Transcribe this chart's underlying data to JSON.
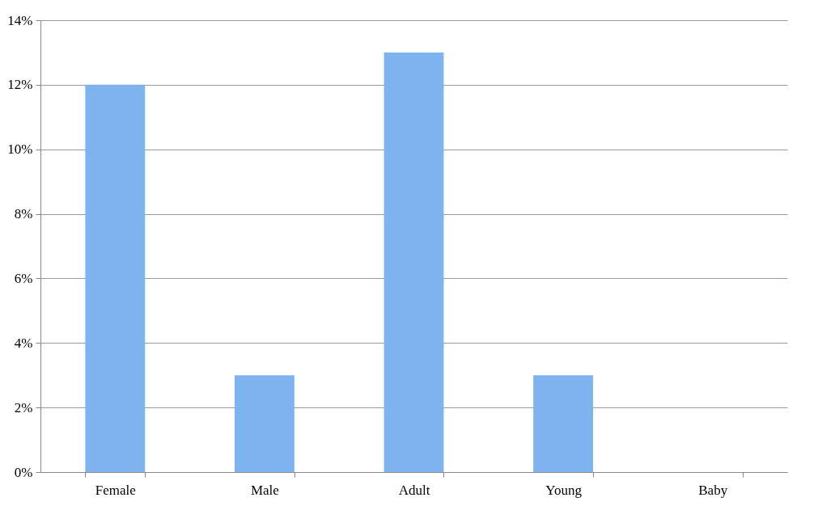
{
  "chart_data": {
    "type": "bar",
    "categories": [
      "Female",
      "Male",
      "Adult",
      "Young",
      "Baby"
    ],
    "values": [
      12,
      3,
      13,
      3,
      0
    ],
    "color": "#7db3ef",
    "ylim": [
      0,
      14
    ],
    "yticks": [
      {
        "value": 0,
        "label": "0%"
      },
      {
        "value": 2,
        "label": "2%"
      },
      {
        "value": 4,
        "label": "4%"
      },
      {
        "value": 6,
        "label": "6%"
      },
      {
        "value": 8,
        "label": "8%"
      },
      {
        "value": 10,
        "label": "10%"
      },
      {
        "value": 12,
        "label": "12%"
      },
      {
        "value": 14,
        "label": "14%"
      }
    ],
    "grid": "y"
  }
}
